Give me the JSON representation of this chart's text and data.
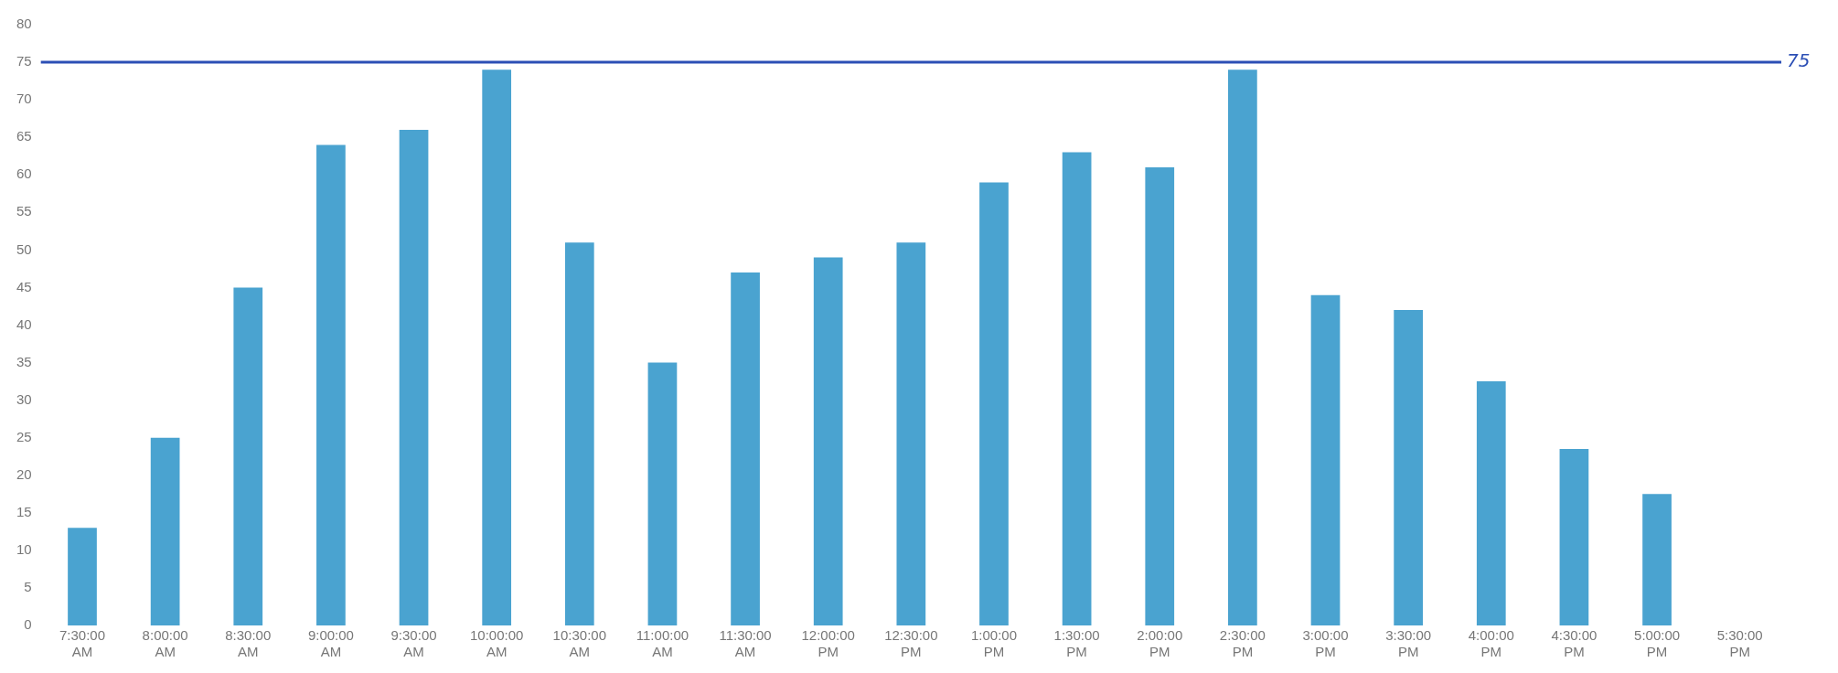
{
  "chart_data": {
    "type": "bar",
    "categories": [
      "7:30:00 AM",
      "8:00:00 AM",
      "8:30:00 AM",
      "9:00:00 AM",
      "9:30:00 AM",
      "10:00:00 AM",
      "10:30:00 AM",
      "11:00:00 AM",
      "11:30:00 AM",
      "12:00:00 PM",
      "12:30:00 PM",
      "1:00:00 PM",
      "1:30:00 PM",
      "2:00:00 PM",
      "2:30:00 PM",
      "3:00:00 PM",
      "3:30:00 PM",
      "4:00:00 PM",
      "4:30:00 PM",
      "5:00:00 PM",
      "5:30:00 PM"
    ],
    "values": [
      13,
      25,
      45,
      64,
      66,
      74,
      51,
      35,
      47,
      49,
      51,
      59,
      63,
      61,
      74,
      44,
      42,
      32.5,
      23.5,
      17.5,
      null
    ],
    "color": "#4aa3d0",
    "ylim": [
      0,
      80
    ],
    "yticks": [
      0,
      5,
      10,
      15,
      20,
      25,
      30,
      35,
      40,
      45,
      50,
      55,
      60,
      65,
      70,
      75,
      80
    ],
    "grid": false,
    "legend": false,
    "ref_lines": [
      {
        "axis": "y",
        "value": 75,
        "label": "75",
        "color": "#2c4fb5"
      }
    ]
  }
}
